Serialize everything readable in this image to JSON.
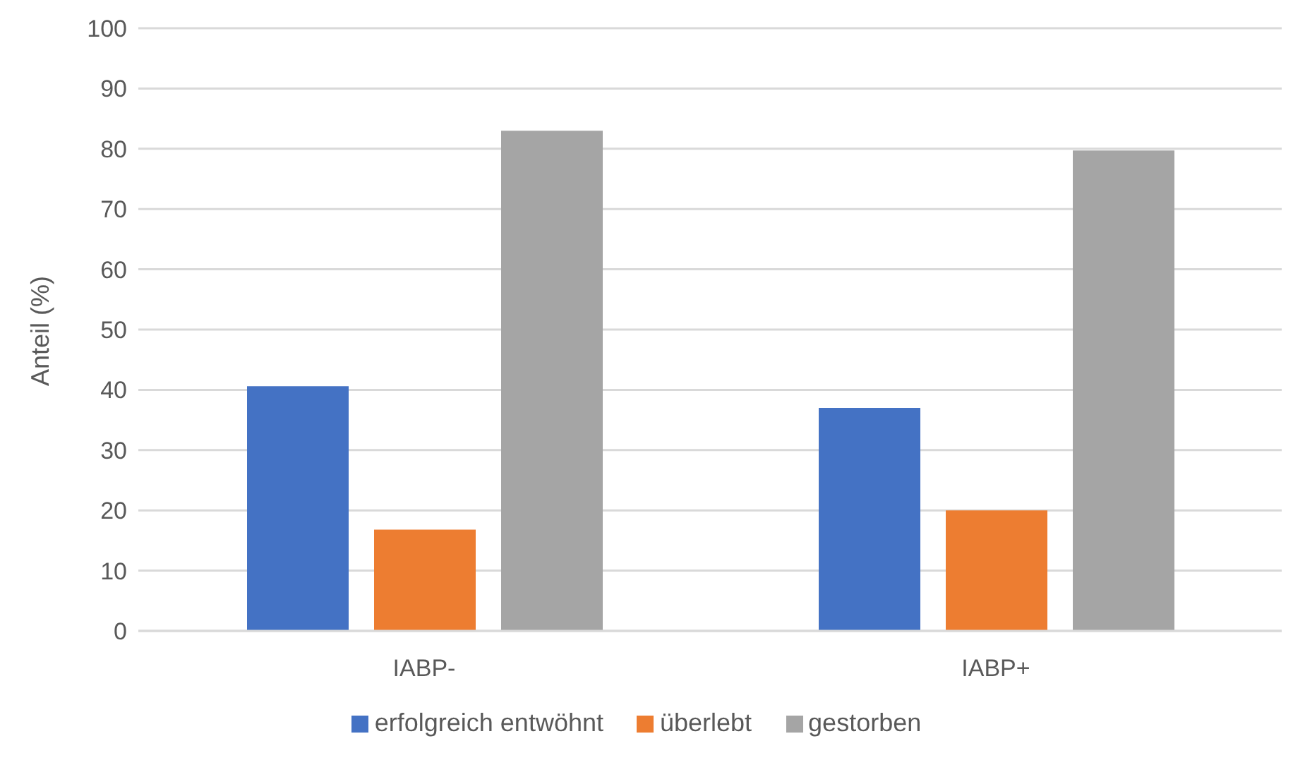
{
  "chart_data": {
    "type": "bar",
    "ylabel": "Anteil (%)",
    "categories": [
      "IABP-",
      "IABP+"
    ],
    "series": [
      {
        "name": "erfolgreich entwöhnt",
        "color": "#4472c4",
        "values": [
          40.6,
          37.0
        ]
      },
      {
        "name": "überlebt",
        "color": "#ed7d31",
        "values": [
          16.8,
          20.0
        ]
      },
      {
        "name": "gestorben",
        "color": "#a5a5a5",
        "values": [
          83.0,
          79.7
        ]
      }
    ],
    "ylim": [
      0,
      100
    ],
    "yticks": [
      0,
      10,
      20,
      30,
      40,
      50,
      60,
      70,
      80,
      90,
      100
    ],
    "grid": "y",
    "legend": "bottom"
  }
}
